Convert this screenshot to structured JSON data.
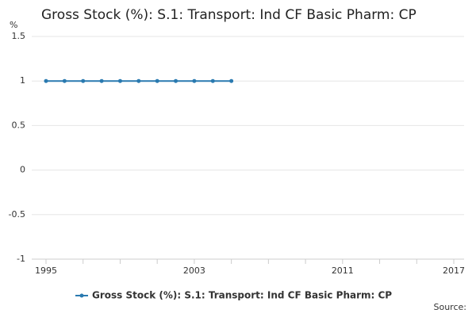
{
  "chart_data": {
    "type": "line",
    "title": "Gross Stock (%): S.1: Transport: Ind CF Basic Pharm: CP",
    "y_label": "%",
    "source": "Source:",
    "x": [
      1995,
      1996,
      1997,
      1998,
      1999,
      2000,
      2001,
      2002,
      2003,
      2004,
      2005
    ],
    "series": [
      {
        "name": "Gross Stock (%): S.1: Transport: Ind CF Basic Pharm: CP",
        "color": "#2a7ab0",
        "values": [
          1,
          1,
          1,
          1,
          1,
          1,
          1,
          1,
          1,
          1,
          1
        ]
      }
    ],
    "xlim": [
      1995,
      2017
    ],
    "xticks": [
      1995,
      2003,
      2011,
      2017
    ],
    "xminor_ticks": [
      1997,
      1999,
      2001,
      2005,
      2007,
      2009,
      2013,
      2015
    ],
    "ylim": [
      -1,
      1.5
    ],
    "yticks": [
      -1,
      -0.5,
      0,
      0.5,
      1,
      1.5
    ],
    "grid": true
  }
}
